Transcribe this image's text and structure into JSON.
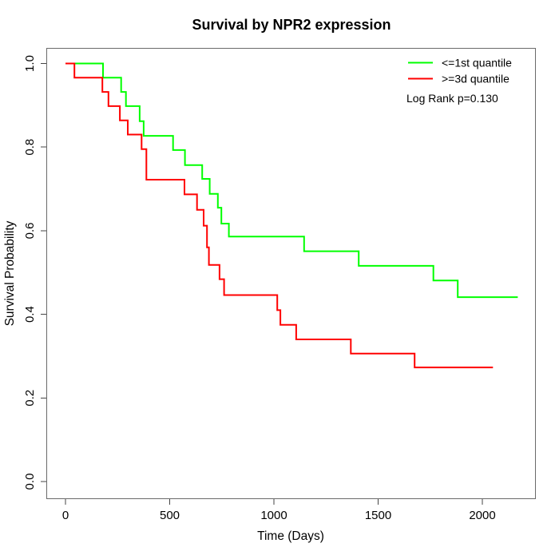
{
  "chart_data": {
    "type": "line",
    "chart_kind": "kaplan-meier-step",
    "title": "Survival by NPR2 expression",
    "xlabel": "Time (Days)",
    "ylabel": "Survival Probability",
    "xticks": [
      0,
      500,
      1000,
      1500,
      2000
    ],
    "ytick_labels": [
      "0.0",
      "0.2",
      "0.4",
      "0.6",
      "0.8",
      "1.0"
    ],
    "xlim": [
      0,
      2260
    ],
    "ylim": [
      0,
      1
    ],
    "grid": false,
    "legend_position": "top-right",
    "annotation": "Log Rank p=0.130",
    "series": [
      {
        "name": "<=1st quantile",
        "color": "#00FF00",
        "end_time": 2170,
        "points": [
          [
            0,
            1.0
          ],
          [
            180,
            0.966
          ],
          [
            267,
            0.932
          ],
          [
            290,
            0.898
          ],
          [
            356,
            0.862
          ],
          [
            375,
            0.827
          ],
          [
            516,
            0.793
          ],
          [
            573,
            0.757
          ],
          [
            656,
            0.724
          ],
          [
            692,
            0.688
          ],
          [
            731,
            0.655
          ],
          [
            748,
            0.617
          ],
          [
            784,
            0.586
          ],
          [
            1145,
            0.551
          ],
          [
            1407,
            0.516
          ],
          [
            1765,
            0.481
          ],
          [
            1882,
            0.441
          ]
        ]
      },
      {
        "name": ">=3d quantile",
        "color": "#FF0000",
        "end_time": 2051,
        "points": [
          [
            0,
            1.0
          ],
          [
            43,
            0.966
          ],
          [
            177,
            0.932
          ],
          [
            206,
            0.898
          ],
          [
            261,
            0.864
          ],
          [
            299,
            0.83
          ],
          [
            365,
            0.795
          ],
          [
            388,
            0.722
          ],
          [
            571,
            0.687
          ],
          [
            631,
            0.65
          ],
          [
            663,
            0.612
          ],
          [
            679,
            0.56
          ],
          [
            688,
            0.518
          ],
          [
            739,
            0.484
          ],
          [
            761,
            0.446
          ],
          [
            1016,
            0.41
          ],
          [
            1031,
            0.375
          ],
          [
            1107,
            0.34
          ],
          [
            1369,
            0.306
          ],
          [
            1675,
            0.273
          ]
        ]
      }
    ]
  }
}
